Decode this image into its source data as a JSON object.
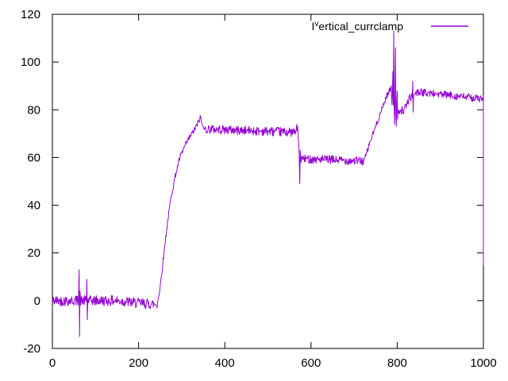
{
  "figure": {
    "background": "#ffffff",
    "axis_color": "#000000"
  },
  "chart_data": {
    "type": "line",
    "title": "",
    "xlabel": "",
    "ylabel": "",
    "xlim": [
      0,
      1000
    ],
    "ylim": [
      -20,
      120
    ],
    "xticks": [
      "0",
      "200",
      "400",
      "600",
      "800",
      "1000"
    ],
    "xtick_values": [
      0,
      200,
      400,
      600,
      800,
      1000
    ],
    "yticks": [
      "-20",
      "0",
      "20",
      "40",
      "60",
      "80",
      "100",
      "120"
    ],
    "ytick_values": [
      -20,
      0,
      20,
      40,
      60,
      80,
      100,
      120
    ],
    "grid": false,
    "legend": {
      "position": "top-right-inside",
      "label": "Iᵛertical_currclamp",
      "label_prefix": "I",
      "label_sup": "v",
      "label_rest": "ertical_currclamp"
    },
    "series": [
      {
        "name": "Iᵛertical_currclamp",
        "color": "#9400d3",
        "description": "noisy stepped current waveform: ~0 until x=243, ramp to peak 77 at x=344, plateau ~71 to x=569, drop-spike to 49 then plateau ~59 to x=722, ramp to 89, spike cluster to 113 near x=792, plateau ~86 declining to ~84.5, final drop to 15 at x=1000",
        "base_keypoints": [
          [
            0,
            0
          ],
          [
            150,
            0
          ],
          [
            200,
            -1
          ],
          [
            243,
            -1.5
          ],
          [
            248,
            3
          ],
          [
            254,
            12
          ],
          [
            260,
            22
          ],
          [
            268,
            34
          ],
          [
            276,
            44
          ],
          [
            286,
            53
          ],
          [
            296,
            60
          ],
          [
            308,
            65
          ],
          [
            320,
            69
          ],
          [
            331,
            72
          ],
          [
            339,
            75
          ],
          [
            344,
            77
          ],
          [
            347,
            74
          ],
          [
            352,
            72
          ],
          [
            420,
            71.5
          ],
          [
            500,
            71
          ],
          [
            564,
            70.5
          ],
          [
            569,
            73
          ],
          [
            571,
            67
          ],
          [
            572,
            65
          ],
          [
            573,
            57
          ],
          [
            574,
            49
          ],
          [
            575,
            63
          ],
          [
            576,
            59.5
          ],
          [
            650,
            59
          ],
          [
            722,
            58.5
          ],
          [
            728,
            61
          ],
          [
            736,
            66
          ],
          [
            744,
            70
          ],
          [
            752,
            74
          ],
          [
            760,
            78
          ],
          [
            768,
            82
          ],
          [
            776,
            86
          ],
          [
            782,
            88
          ],
          [
            786,
            89
          ],
          [
            787,
            85
          ],
          [
            788,
            82
          ],
          [
            789,
            88
          ],
          [
            790,
            96
          ],
          [
            791,
            82
          ],
          [
            792,
            113
          ],
          [
            793,
            80
          ],
          [
            794,
            74
          ],
          [
            795,
            84
          ],
          [
            796,
            106
          ],
          [
            797,
            78
          ],
          [
            798,
            73
          ],
          [
            799,
            83
          ],
          [
            800,
            88
          ],
          [
            801,
            76
          ],
          [
            802,
            80
          ],
          [
            808,
            80
          ],
          [
            815,
            79.5
          ],
          [
            820,
            81
          ],
          [
            826,
            84
          ],
          [
            831,
            85.5
          ],
          [
            835,
            85
          ],
          [
            836,
            92
          ],
          [
            837,
            79
          ],
          [
            838,
            86
          ],
          [
            845,
            87.5
          ],
          [
            900,
            86.5
          ],
          [
            950,
            85.5
          ],
          [
            1000,
            84.5
          ]
        ],
        "noise_bands": [
          {
            "x0": 0,
            "x1": 243,
            "amp": 2.2
          },
          {
            "x0": 248,
            "x1": 344,
            "amp": 1.2
          },
          {
            "x0": 352,
            "x1": 568,
            "amp": 1.9
          },
          {
            "x0": 576,
            "x1": 722,
            "amp": 1.8
          },
          {
            "x0": 724,
            "x1": 786,
            "amp": 1.2
          },
          {
            "x0": 802,
            "x1": 834,
            "amp": 1.7
          },
          {
            "x0": 843,
            "x1": 1000,
            "amp": 1.6
          }
        ],
        "spikes": [
          [
            61,
            3
          ],
          [
            62,
            13
          ],
          [
            63,
            -15
          ],
          [
            64,
            4
          ],
          [
            80,
            9
          ],
          [
            81,
            -8
          ]
        ],
        "final_drop": {
          "x": 1000,
          "to": 15
        }
      }
    ]
  }
}
